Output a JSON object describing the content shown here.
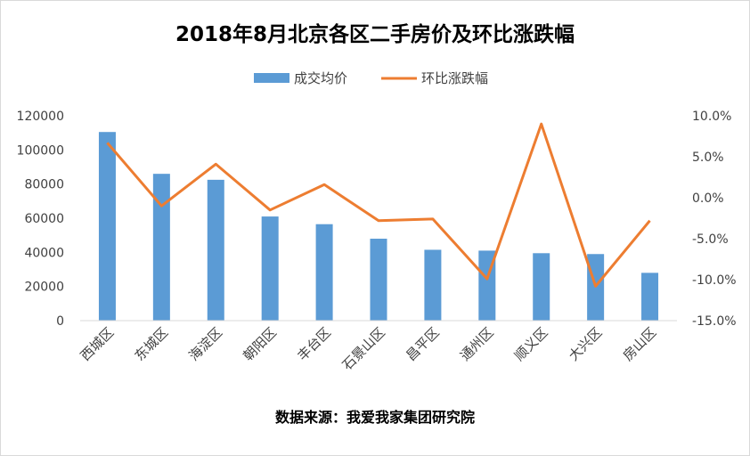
{
  "chart_data": {
    "type": "bar",
    "title": "2018年8月北京各区二手房价及环比涨跌幅",
    "categories": [
      "西城区",
      "东城区",
      "海淀区",
      "朝阳区",
      "丰台区",
      "石景山区",
      "昌平区",
      "通州区",
      "顺义区",
      "大兴区",
      "房山区"
    ],
    "series": [
      {
        "name": "成交均价",
        "type": "bar",
        "axis": "left",
        "color": "#5b9bd5",
        "values": [
          110500,
          86000,
          82500,
          61000,
          56500,
          48000,
          41500,
          41000,
          39500,
          39000,
          28000
        ]
      },
      {
        "name": "环比涨跌幅",
        "type": "line",
        "axis": "right",
        "color": "#ed7d31",
        "values": [
          6.7,
          -1.0,
          4.1,
          -1.5,
          1.6,
          -2.8,
          -2.6,
          -9.9,
          9.0,
          -10.8,
          -2.8
        ]
      }
    ],
    "y_left": {
      "min": 0,
      "max": 120000,
      "ticks": [
        "0",
        "20000",
        "40000",
        "60000",
        "80000",
        "100000",
        "120000"
      ]
    },
    "y_right": {
      "min": -15,
      "max": 10,
      "ticks": [
        "-15.0%",
        "-10.0%",
        "-5.0%",
        "0.0%",
        "5.0%",
        "10.0%"
      ]
    },
    "legend_position": "top",
    "grid": false
  },
  "source_text": "数据来源：我爱我家集团研究院"
}
